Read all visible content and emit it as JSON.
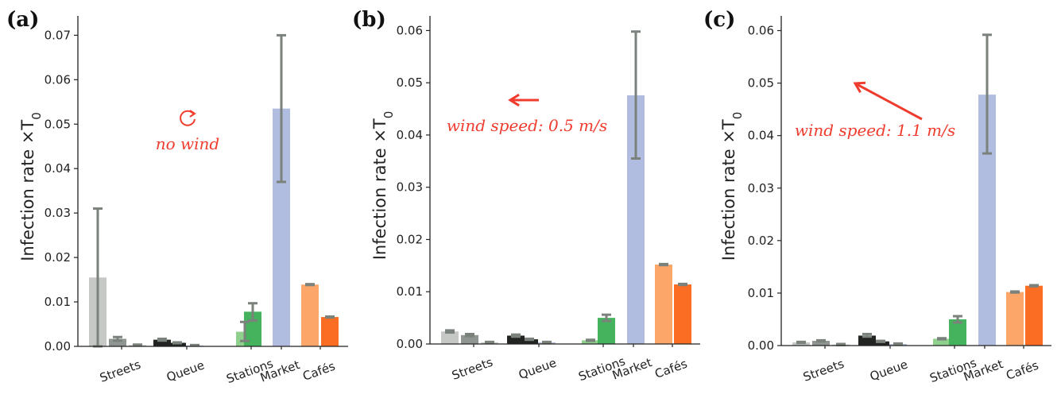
{
  "chart_data": [
    {
      "type": "bar",
      "panel": "(a)",
      "ylabel": "Infection rate ×T",
      "ylabel_sub": "0",
      "ylim": [
        0,
        0.074
      ],
      "yticks": [
        "0.00",
        "0.01",
        "0.02",
        "0.03",
        "0.04",
        "0.05",
        "0.06",
        "0.07"
      ],
      "categories": [
        "Streets",
        "Queue",
        "Stations",
        "Market",
        "Cafés"
      ],
      "annotation": {
        "text": "no wind",
        "symbol": "↻",
        "color": "#f03c2e"
      },
      "bars": [
        {
          "group": "Streets",
          "value": 0.0155,
          "err_low": 0.0,
          "err_high": 0.031,
          "color": "#c5c8c5"
        },
        {
          "group": "Streets",
          "value": 0.0017,
          "err_low": 0.0013,
          "err_high": 0.0021,
          "color": "#8f9590"
        },
        {
          "group": "Streets",
          "value": 0.0003,
          "err_low": 0.0002,
          "err_high": 0.0004,
          "color": "#c5c8c5"
        },
        {
          "group": "Queue",
          "value": 0.0015,
          "err_low": 0.0013,
          "err_high": 0.0017,
          "color": "#222422"
        },
        {
          "group": "Queue",
          "value": 0.0008,
          "err_low": 0.0007,
          "err_high": 0.0009,
          "color": "#222422"
        },
        {
          "group": "Queue",
          "value": 0.0002,
          "err_low": 0.0002,
          "err_high": 0.0003,
          "color": "#b0bce0"
        },
        {
          "group": "Stations",
          "value": 0.0033,
          "err_low": 0.0012,
          "err_high": 0.0055,
          "color": "#8fd18c"
        },
        {
          "group": "Stations",
          "value": 0.0078,
          "err_low": 0.0058,
          "err_high": 0.0097,
          "color": "#45b35d"
        },
        {
          "group": "Market",
          "value": 0.0535,
          "err_low": 0.037,
          "err_high": 0.07,
          "color": "#b0bce0"
        },
        {
          "group": "Cafés",
          "value": 0.0139,
          "err_low": 0.0138,
          "err_high": 0.014,
          "color": "#fca66a"
        },
        {
          "group": "Cafés",
          "value": 0.0066,
          "err_low": 0.0065,
          "err_high": 0.0067,
          "color": "#fb6d23"
        }
      ]
    },
    {
      "type": "bar",
      "panel": "(b)",
      "ylabel": "Infection rate ×T",
      "ylabel_sub": "0",
      "ylim": [
        0,
        0.0625
      ],
      "yticks": [
        "0.00",
        "0.01",
        "0.02",
        "0.03",
        "0.04",
        "0.05",
        "0.06"
      ],
      "categories": [
        "Streets",
        "Queue",
        "Stations",
        "Market",
        "Cafés"
      ],
      "annotation": {
        "text": "wind speed: 0.5 m/s",
        "symbol": "←",
        "color": "#f03c2e"
      },
      "bars": [
        {
          "group": "Streets",
          "value": 0.0024,
          "err_low": 0.0022,
          "err_high": 0.0026,
          "color": "#c5c8c5"
        },
        {
          "group": "Streets",
          "value": 0.0017,
          "err_low": 0.0015,
          "err_high": 0.0019,
          "color": "#8f9590"
        },
        {
          "group": "Streets",
          "value": 0.0003,
          "err_low": 0.0002,
          "err_high": 0.0004,
          "color": "#c5c8c5"
        },
        {
          "group": "Queue",
          "value": 0.0016,
          "err_low": 0.0014,
          "err_high": 0.0018,
          "color": "#222422"
        },
        {
          "group": "Queue",
          "value": 0.0009,
          "err_low": 0.0008,
          "err_high": 0.001,
          "color": "#222422"
        },
        {
          "group": "Queue",
          "value": 0.0003,
          "err_low": 0.0002,
          "err_high": 0.0004,
          "color": "#b0bce0"
        },
        {
          "group": "Stations",
          "value": 0.0007,
          "err_low": 0.0006,
          "err_high": 0.0008,
          "color": "#8fd18c"
        },
        {
          "group": "Stations",
          "value": 0.005,
          "err_low": 0.0044,
          "err_high": 0.0056,
          "color": "#45b35d"
        },
        {
          "group": "Market",
          "value": 0.0476,
          "err_low": 0.0355,
          "err_high": 0.0598,
          "color": "#b0bce0"
        },
        {
          "group": "Cafés",
          "value": 0.0152,
          "err_low": 0.0151,
          "err_high": 0.0153,
          "color": "#fca66a"
        },
        {
          "group": "Cafés",
          "value": 0.0114,
          "err_low": 0.0113,
          "err_high": 0.0115,
          "color": "#fb6d23"
        }
      ]
    },
    {
      "type": "bar",
      "panel": "(c)",
      "ylabel": "Infection rate ×T",
      "ylabel_sub": "0",
      "ylim": [
        0,
        0.0625
      ],
      "yticks": [
        "0.00",
        "0.01",
        "0.02",
        "0.03",
        "0.04",
        "0.05",
        "0.06"
      ],
      "categories": [
        "Streets",
        "Queue",
        "Stations",
        "Market",
        "Cafés"
      ],
      "annotation": {
        "text": "wind speed: 1.1 m/s",
        "symbol": "↖",
        "color": "#f03c2e"
      },
      "bars": [
        {
          "group": "Streets",
          "value": 0.0006,
          "err_low": 0.0005,
          "err_high": 0.0007,
          "color": "#c5c8c5"
        },
        {
          "group": "Streets",
          "value": 0.0009,
          "err_low": 0.0008,
          "err_high": 0.001,
          "color": "#8f9590"
        },
        {
          "group": "Streets",
          "value": 0.0002,
          "err_low": 0.0001,
          "err_high": 0.0003,
          "color": "#c5c8c5"
        },
        {
          "group": "Queue",
          "value": 0.0019,
          "err_low": 0.0017,
          "err_high": 0.0022,
          "color": "#222422"
        },
        {
          "group": "Queue",
          "value": 0.0008,
          "err_low": 0.0007,
          "err_high": 0.0009,
          "color": "#222422"
        },
        {
          "group": "Queue",
          "value": 0.0003,
          "err_low": 0.0002,
          "err_high": 0.0004,
          "color": "#b0bce0"
        },
        {
          "group": "Stations",
          "value": 0.0013,
          "err_low": 0.0012,
          "err_high": 0.0014,
          "color": "#8fd18c"
        },
        {
          "group": "Stations",
          "value": 0.005,
          "err_low": 0.0044,
          "err_high": 0.0056,
          "color": "#45b35d"
        },
        {
          "group": "Market",
          "value": 0.0478,
          "err_low": 0.0366,
          "err_high": 0.0592,
          "color": "#b0bce0"
        },
        {
          "group": "Cafés",
          "value": 0.0102,
          "err_low": 0.0101,
          "err_high": 0.0103,
          "color": "#fca66a"
        },
        {
          "group": "Cafés",
          "value": 0.0114,
          "err_low": 0.0113,
          "err_high": 0.0115,
          "color": "#fb6d23"
        }
      ]
    }
  ],
  "colors": {
    "error_bar": "#7a827b",
    "axis": "#222222",
    "annotation": "#f03c2e"
  }
}
